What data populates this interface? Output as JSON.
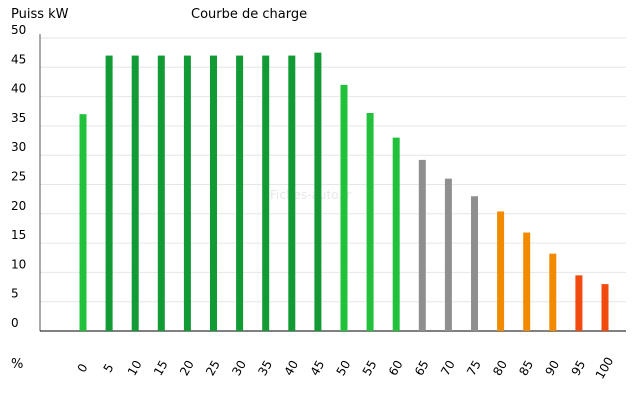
{
  "chart_data": {
    "type": "bar",
    "title": "Courbe de charge",
    "ylabel": "Puiss kW",
    "xlabel": "%",
    "watermark": "Fiches-auto.fr",
    "ylim": [
      0,
      50
    ],
    "yticks": [
      0,
      5,
      10,
      15,
      20,
      25,
      30,
      35,
      40,
      45,
      50
    ],
    "grid": true,
    "categories": [
      "0",
      "5",
      "10",
      "15",
      "20",
      "25",
      "30",
      "35",
      "40",
      "45",
      "50",
      "55",
      "60",
      "65",
      "70",
      "75",
      "80",
      "85",
      "90",
      "95",
      "100"
    ],
    "values": [
      37,
      47,
      47,
      47,
      47,
      47,
      47,
      47,
      47,
      47.5,
      42,
      37.2,
      33,
      29.2,
      26,
      23,
      20.4,
      16.8,
      13.2,
      9.5,
      8
    ],
    "colors": [
      "#22c13c",
      "#129a35",
      "#129a35",
      "#129a35",
      "#129a35",
      "#129a35",
      "#129a35",
      "#129a35",
      "#129a35",
      "#129a35",
      "#22c13c",
      "#22c13c",
      "#22c13c",
      "#8f8f8f",
      "#8f8f8f",
      "#8f8f8f",
      "#f28a00",
      "#f28a00",
      "#f28a00",
      "#f04a0e",
      "#f04a0e"
    ]
  }
}
